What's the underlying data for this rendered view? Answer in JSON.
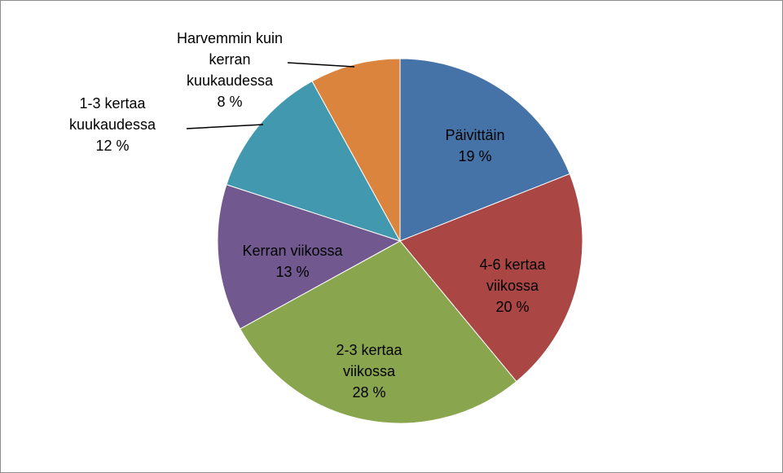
{
  "chart_data": {
    "type": "pie",
    "categories": [
      "Päivittäin",
      "4-6 kertaa viikossa",
      "2-3 kertaa viikossa",
      "Kerran viikossa",
      "1-3 kertaa kuukaudessa",
      "Harvemmin kuin kerran kuukaudessa"
    ],
    "values": [
      19,
      20,
      28,
      13,
      12,
      8
    ],
    "value_labels": [
      "19 %",
      "20 %",
      "28 %",
      "13 %",
      "12 %",
      "8 %"
    ],
    "colors": [
      "#4572a7",
      "#aa4643",
      "#89a54e",
      "#71588f",
      "#4198af",
      "#db843d"
    ]
  }
}
